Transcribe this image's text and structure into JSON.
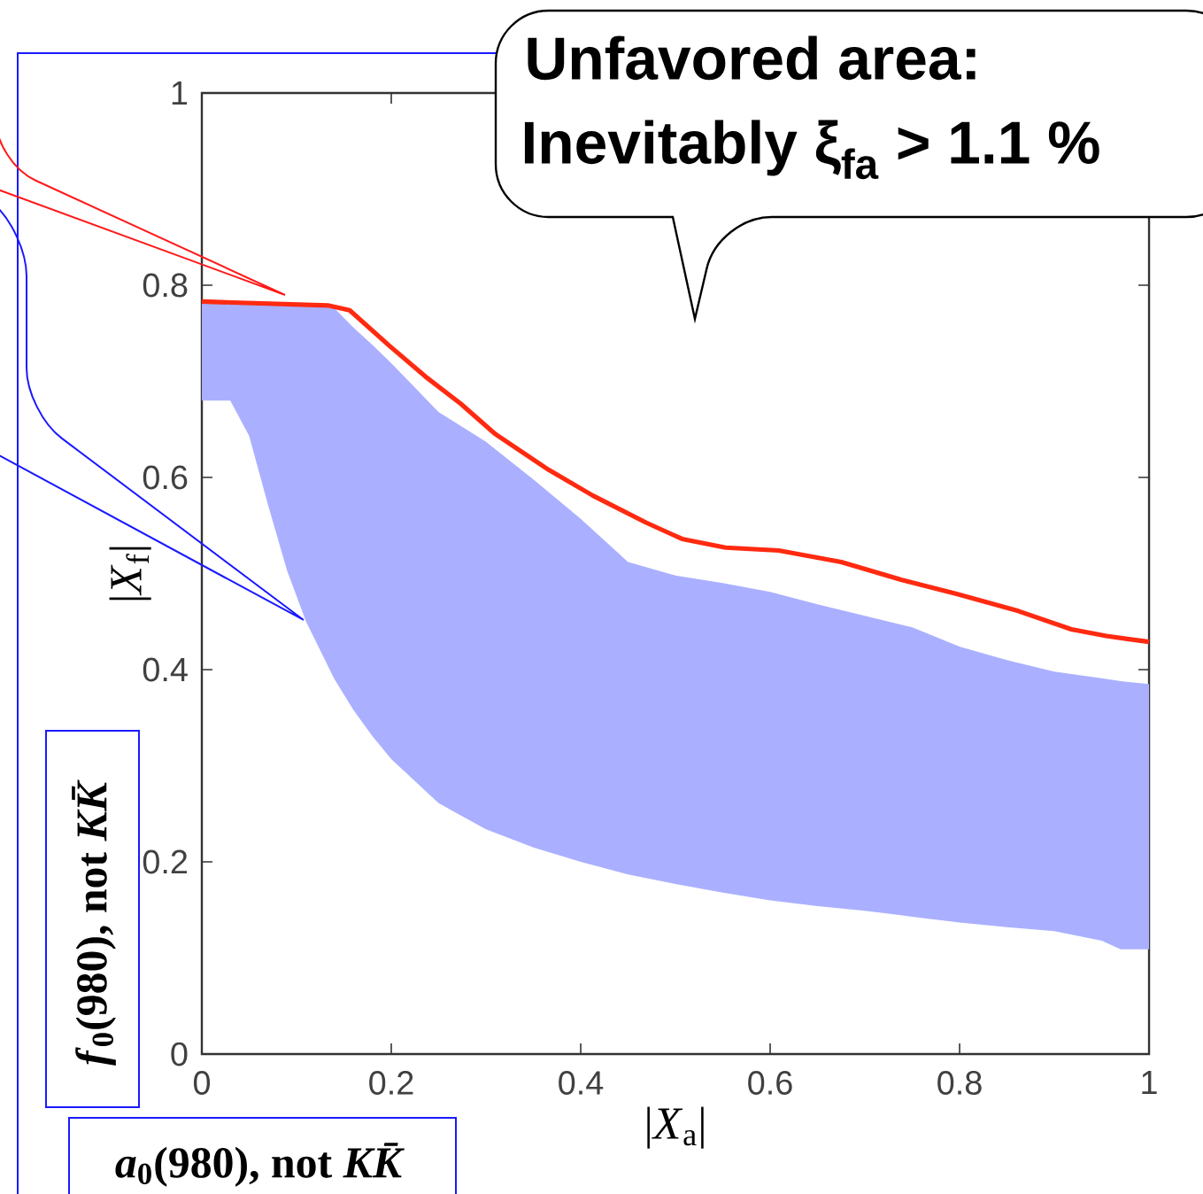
{
  "chart_data": {
    "type": "line",
    "xlabel": "|*X*$_{a}$|",
    "ylabel": "|*X*$_{f}$|",
    "xlim": [
      0,
      1
    ],
    "ylim": [
      0,
      1
    ],
    "xticks": [
      0,
      0.2,
      0.4,
      0.6,
      0.8,
      1
    ],
    "yticks": [
      0,
      0.2,
      0.4,
      0.6,
      0.8,
      1
    ],
    "series": [
      {
        "type": "line",
        "color": "#aab0ff",
        "x": [
          0,
          0.03,
          0.05,
          0.07,
          0.09,
          0.11,
          0.14,
          0.16,
          0.18,
          0.2,
          0.25,
          0.3,
          0.35,
          0.4,
          0.45,
          0.5,
          0.55,
          0.6,
          0.65,
          0.7,
          0.75,
          0.8,
          0.85,
          0.9,
          0.95,
          0.97,
          1
        ],
        "values": [
          null,
          null,
          null,
          null,
          null,
          null,
          null,
          null,
          null,
          null,
          null,
          null,
          null,
          null,
          null,
          null,
          null,
          null,
          null,
          null,
          null,
          null,
          null,
          null,
          null,
          null,
          null
        ],
        "upper": [
          0.783,
          0.783,
          0.782,
          0.78,
          0.78,
          0.779,
          0.776,
          0.756,
          0.738,
          0.719,
          0.668,
          0.637,
          0.598,
          0.557,
          0.512,
          0.498,
          0.49,
          0.481,
          0.468,
          0.456,
          0.444,
          0.424,
          0.41,
          0.398,
          0.391,
          0.388,
          0.385
        ],
        "lower": [
          0.68,
          0.68,
          0.643,
          0.571,
          0.503,
          0.45,
          0.39,
          0.358,
          0.331,
          0.307,
          0.261,
          0.234,
          0.215,
          0.2,
          0.187,
          0.177,
          0.168,
          0.16,
          0.154,
          0.149,
          0.143,
          0.137,
          0.132,
          0.128,
          0.118,
          0.109,
          0.109
        ]
      },
      {
        "color": "#ff2a10",
        "x": [
          0,
          0.133,
          0.156,
          0.198,
          0.236,
          0.273,
          0.31,
          0.366,
          0.413,
          0.469,
          0.507,
          0.553,
          0.609,
          0.675,
          0.74,
          0.796,
          0.862,
          0.918,
          0.955,
          1
        ],
        "values": [
          0.783,
          0.779,
          0.774,
          0.737,
          0.705,
          0.677,
          0.645,
          0.608,
          0.581,
          0.553,
          0.536,
          0.527,
          0.524,
          0.512,
          0.493,
          0.479,
          0.461,
          0.442,
          0.435,
          0.429
        ]
      }
    ],
    "annotations": [
      "Unfavored area:",
      "Inevitably ξ$_{fa}$ > 1.1 %",
      "*f*$_{0}$(980), not *KK̄*",
      "*a*$_{0}$(980), not *KK̄*"
    ]
  }
}
